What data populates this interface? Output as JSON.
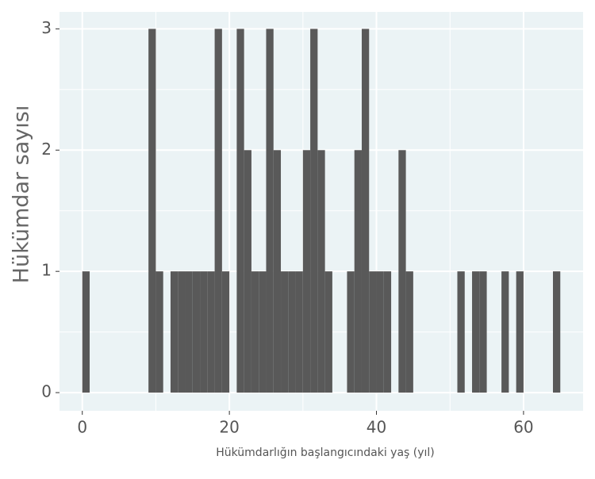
{
  "chart_data": {
    "type": "histogram",
    "xlabel": "Hükümdarlığın başlangıcındaki yaş (yıl)",
    "ylabel": "Hükümdar sayısı",
    "bins": [
      0,
      1,
      2,
      3,
      4,
      5,
      6,
      7,
      8,
      9,
      10,
      11,
      12,
      13,
      14,
      15,
      16,
      17,
      18,
      19,
      20,
      21,
      22,
      23,
      24,
      25,
      26,
      27,
      28,
      29,
      30,
      31,
      32,
      33,
      34,
      35,
      36,
      37,
      38,
      39,
      40,
      41,
      42,
      43,
      44,
      45,
      46,
      47,
      48,
      49,
      50,
      51,
      52,
      53,
      54,
      55,
      56,
      57,
      58,
      59,
      60,
      61,
      62,
      63,
      64,
      65
    ],
    "values": [
      1,
      0,
      0,
      0,
      0,
      0,
      0,
      0,
      0,
      3,
      1,
      0,
      1,
      1,
      1,
      1,
      1,
      1,
      3,
      1,
      0,
      3,
      2,
      1,
      1,
      3,
      2,
      1,
      1,
      1,
      2,
      3,
      2,
      1,
      0,
      0,
      1,
      2,
      3,
      1,
      1,
      1,
      0,
      2,
      1,
      0,
      0,
      0,
      0,
      0,
      0,
      1,
      0,
      1,
      1,
      0,
      0,
      1,
      0,
      1,
      0,
      0,
      0,
      0,
      1
    ],
    "color": "#595959",
    "background": "#ebf3f5",
    "xlim": [
      -3.1,
      68.1
    ],
    "ylim": [
      -0.15,
      3.14
    ],
    "xticks": [
      0,
      20,
      40,
      60
    ],
    "yticks": [
      0,
      1,
      2,
      3
    ],
    "xminor": [
      10,
      30,
      50
    ],
    "yminor": [
      0.5,
      1.5,
      2.5
    ],
    "grid": true
  }
}
